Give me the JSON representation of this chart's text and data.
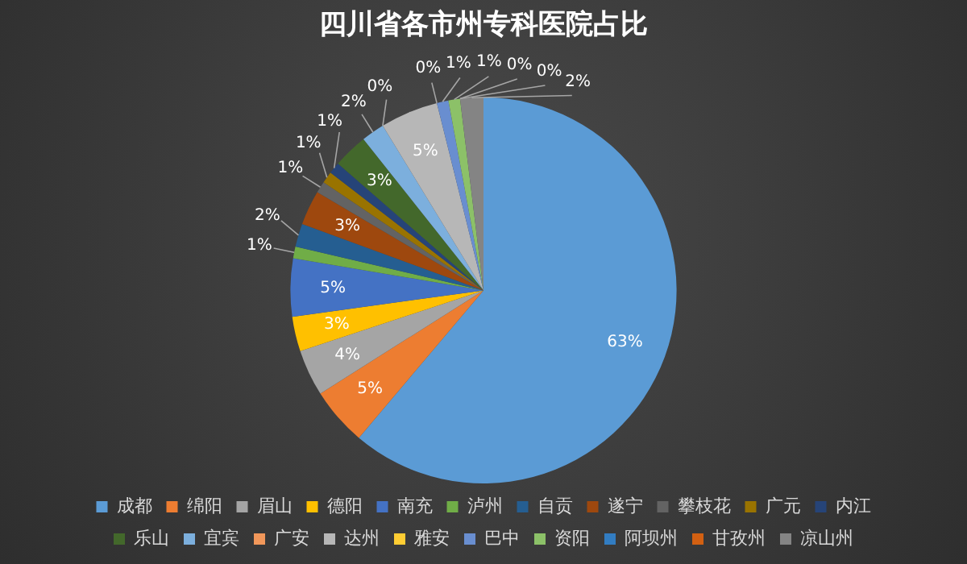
{
  "chart_data": {
    "type": "pie",
    "title": "四川省各市州专科医院占比",
    "categories": [
      "成都",
      "绵阳",
      "眉山",
      "德阳",
      "南充",
      "泸州",
      "自贡",
      "遂宁",
      "攀枝花",
      "广元",
      "内江",
      "乐山",
      "宜宾",
      "广安",
      "达州",
      "雅安",
      "巴中",
      "资阳",
      "阿坝州",
      "甘孜州",
      "凉山州"
    ],
    "values": [
      63,
      5,
      4,
      3,
      5,
      1,
      2,
      3,
      1,
      1,
      1,
      3,
      2,
      0,
      5,
      0,
      1,
      1,
      0,
      0,
      2
    ],
    "value_labels": [
      "63%",
      "5%",
      "4%",
      "3%",
      "5%",
      "1%",
      "2%",
      "3%",
      "1%",
      "1%",
      "1%",
      "3%",
      "2%",
      "0%",
      "5%",
      "0%",
      "1%",
      "1%",
      "0%",
      "0%",
      "2%"
    ],
    "colors": [
      "#5b9bd5",
      "#ed7d31",
      "#a5a5a5",
      "#ffc000",
      "#4472c4",
      "#70ad47",
      "#255e91",
      "#9e480e",
      "#636363",
      "#997300",
      "#264478",
      "#43682b",
      "#7cafdd",
      "#f1975a",
      "#b7b7b7",
      "#ffcd33",
      "#698ed0",
      "#8cc168",
      "#327dc2",
      "#d26012",
      "#848484"
    ],
    "legend": "bottom"
  }
}
